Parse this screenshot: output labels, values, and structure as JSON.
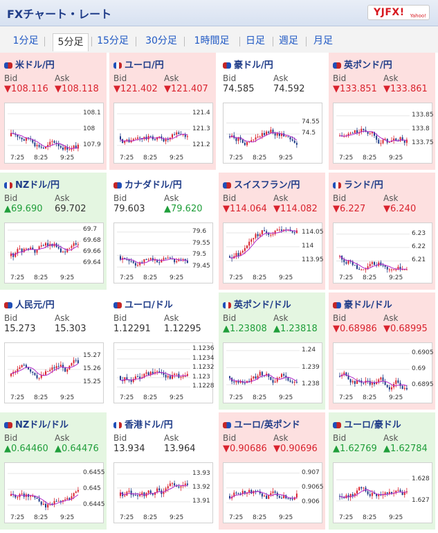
{
  "header": {
    "title": "FXチャート・レート",
    "logo_text": "YJFX!",
    "logo_sub": "Yahoo!"
  },
  "tabs": [
    "1分足",
    "5分足",
    "15分足",
    "30分足",
    "1時間足",
    "日足",
    "週足",
    "月足"
  ],
  "active_tab": 1,
  "labels": {
    "bid": "Bid",
    "ask": "Ask"
  },
  "x_ticks": [
    "7:25",
    "8:25",
    "9:25"
  ],
  "colors": {
    "down": "#fde0e0",
    "up": "#e4f6e1",
    "neutral": "#ffffff",
    "red": "#d9232e",
    "green": "#1f9e3a",
    "title": "#1f3c88"
  },
  "pairs": [
    {
      "name": "米ドル/円",
      "bid": "▼108.116",
      "ask": "▼108.118",
      "status": "down",
      "flag_icon": "usd-flag-icon",
      "y_ticks": [
        "108.1",
        "108",
        "107.9"
      ],
      "ylim": [
        107.86,
        108.14
      ]
    },
    {
      "name": "ユーロ/円",
      "bid": "▼121.402",
      "ask": "▼121.407",
      "status": "down",
      "flag_icon": "eur-flag-icon",
      "y_ticks": [
        "121.4",
        "121.3",
        "121.2"
      ],
      "ylim": [
        121.16,
        121.44
      ]
    },
    {
      "name": "豪ドル/円",
      "bid": "74.585",
      "ask": "74.592",
      "status": "neutral",
      "flag_icon": "aud-flag-icon",
      "y_ticks": [
        "74.55",
        "74.5"
      ],
      "ylim": [
        74.42,
        74.62
      ]
    },
    {
      "name": "英ポンド/円",
      "bid": "▼133.851",
      "ask": "▼133.861",
      "status": "down",
      "flag_icon": "gbp-flag-icon",
      "y_ticks": [
        "133.85",
        "133.8",
        "133.75"
      ],
      "ylim": [
        133.72,
        133.88
      ]
    },
    {
      "name": "NZドル/円",
      "bid": "▲69.690",
      "ask": "69.702",
      "status": "up",
      "flag_icon": "nzd-flag-icon",
      "y_ticks": [
        "69.7",
        "69.68",
        "69.66",
        "69.64"
      ],
      "ylim": [
        69.625,
        69.705
      ]
    },
    {
      "name": "カナダドル/円",
      "bid": "79.603",
      "ask": "▲79.620",
      "status": "neutral",
      "flag_icon": "cad-flag-icon",
      "y_ticks": [
        "79.6",
        "79.55",
        "79.5",
        "79.45"
      ],
      "ylim": [
        79.43,
        79.62
      ]
    },
    {
      "name": "スイスフラン/円",
      "bid": "▼114.064",
      "ask": "▼114.082",
      "status": "down",
      "flag_icon": "chf-flag-icon",
      "y_ticks": [
        "114.05",
        "114",
        "113.95"
      ],
      "ylim": [
        113.91,
        114.07
      ]
    },
    {
      "name": "ランド/円",
      "bid": "▼6.227",
      "ask": "▼6.240",
      "status": "down",
      "flag_icon": "zar-flag-icon",
      "y_ticks": [
        "6.23",
        "6.22",
        "6.21"
      ],
      "ylim": [
        6.202,
        6.235
      ]
    },
    {
      "name": "人民元/円",
      "bid": "15.273",
      "ask": "15.303",
      "status": "neutral",
      "flag_icon": "cny-flag-icon",
      "y_ticks": [
        "15.27",
        "15.26",
        "15.25"
      ],
      "ylim": [
        15.243,
        15.277
      ]
    },
    {
      "name": "ユーロ/ドル",
      "bid": "1.12291",
      "ask": "1.12295",
      "status": "neutral",
      "flag_icon": "eurusd-flag-icon",
      "y_ticks": [
        "1.1236",
        "1.1234",
        "1.1232",
        "1.123",
        "1.1228"
      ],
      "ylim": [
        1.1227,
        1.12365
      ]
    },
    {
      "name": "英ポンド/ドル",
      "bid": "▲1.23808",
      "ask": "▲1.23818",
      "status": "up",
      "flag_icon": "gbpusd-flag-icon",
      "y_ticks": [
        "1.24",
        "1.239",
        "1.238"
      ],
      "ylim": [
        1.2376,
        1.2402
      ]
    },
    {
      "name": "豪ドル/ドル",
      "bid": "▼0.68986",
      "ask": "▼0.68995",
      "status": "down",
      "flag_icon": "audusd-flag-icon",
      "y_ticks": [
        "0.6905",
        "0.69",
        "0.6895"
      ],
      "ylim": [
        0.6893,
        0.6907
      ]
    },
    {
      "name": "NZドル/ドル",
      "bid": "▲0.64460",
      "ask": "▲0.64476",
      "status": "up",
      "flag_icon": "nzdusd-flag-icon",
      "y_ticks": [
        "0.6455",
        "0.645",
        "0.6445"
      ],
      "ylim": [
        0.6443,
        0.6457
      ]
    },
    {
      "name": "香港ドル/円",
      "bid": "13.934",
      "ask": "13.964",
      "status": "neutral",
      "flag_icon": "hkd-flag-icon",
      "y_ticks": [
        "13.93",
        "13.92",
        "13.91"
      ],
      "ylim": [
        13.903,
        13.935
      ]
    },
    {
      "name": "ユーロ/英ポンド",
      "bid": "▼0.90686",
      "ask": "▼0.90696",
      "status": "down",
      "flag_icon": "eurgbp-flag-icon",
      "y_ticks": [
        "0.907",
        "0.9065",
        "0.906"
      ],
      "ylim": [
        0.9057,
        0.9072
      ]
    },
    {
      "name": "ユーロ/豪ドル",
      "bid": "▲1.62769",
      "ask": "▲1.62784",
      "status": "up",
      "flag_icon": "euraud-flag-icon",
      "y_ticks": [
        "1.628",
        "1.627"
      ],
      "ylim": [
        1.6265,
        1.6286
      ]
    }
  ]
}
